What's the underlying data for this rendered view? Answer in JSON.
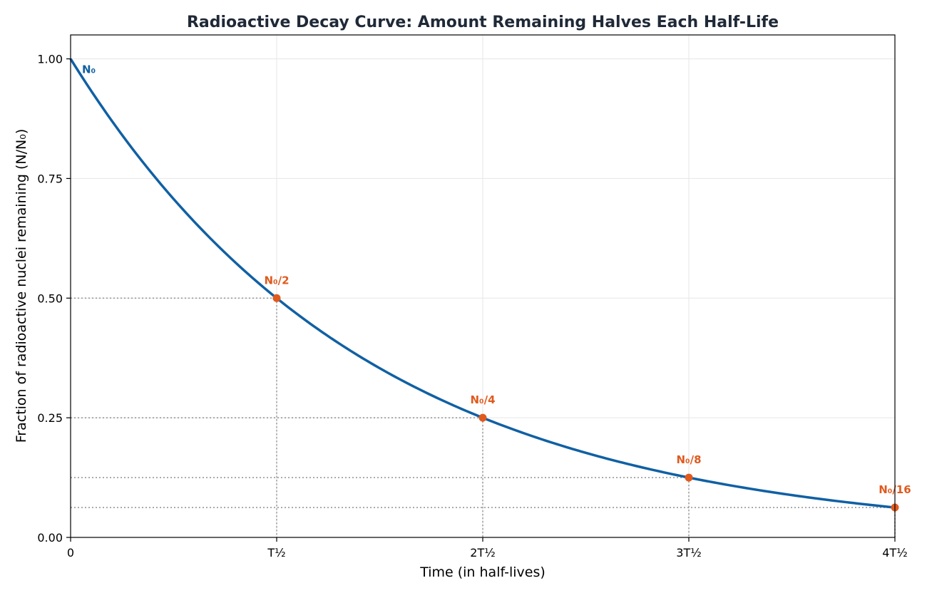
{
  "chart_data": {
    "type": "line",
    "title": "Radioactive Decay Curve: Amount Remaining Halves Each Half-Life",
    "xlabel": "Time (in half-lives)",
    "ylabel": "Fraction of radioactive nuclei remaining (N/N₀)",
    "xlim": [
      0,
      4
    ],
    "ylim": [
      0,
      1.05
    ],
    "x_ticks": [
      {
        "value": 0,
        "label": "0"
      },
      {
        "value": 1,
        "label": "T½"
      },
      {
        "value": 2,
        "label": "2T½"
      },
      {
        "value": 3,
        "label": "3T½"
      },
      {
        "value": 4,
        "label": "4T½"
      }
    ],
    "y_ticks": [
      {
        "value": 0,
        "label": "0.00"
      },
      {
        "value": 0.25,
        "label": "0.25"
      },
      {
        "value": 0.5,
        "label": "0.50"
      },
      {
        "value": 0.75,
        "label": "0.75"
      },
      {
        "value": 1.0,
        "label": "1.00"
      }
    ],
    "grid": true,
    "series": [
      {
        "equation": "N/N₀ = 0.5^t",
        "x_range": [
          0,
          4
        ],
        "color": "#1060a4"
      }
    ],
    "start_label": {
      "x": 0,
      "y": 1.0,
      "text": "N₀"
    },
    "points": [
      {
        "x": 1,
        "y": 0.5,
        "label": "N₀/2"
      },
      {
        "x": 2,
        "y": 0.25,
        "label": "N₀/4"
      },
      {
        "x": 3,
        "y": 0.125,
        "label": "N₀/8"
      },
      {
        "x": 4,
        "y": 0.0625,
        "label": "N₀/16"
      }
    ],
    "colors": {
      "curve": "#1060a4",
      "points": "#e05a1e",
      "guides": "#999999",
      "grid": "#e6e6e6",
      "title": "#1f2937"
    }
  }
}
